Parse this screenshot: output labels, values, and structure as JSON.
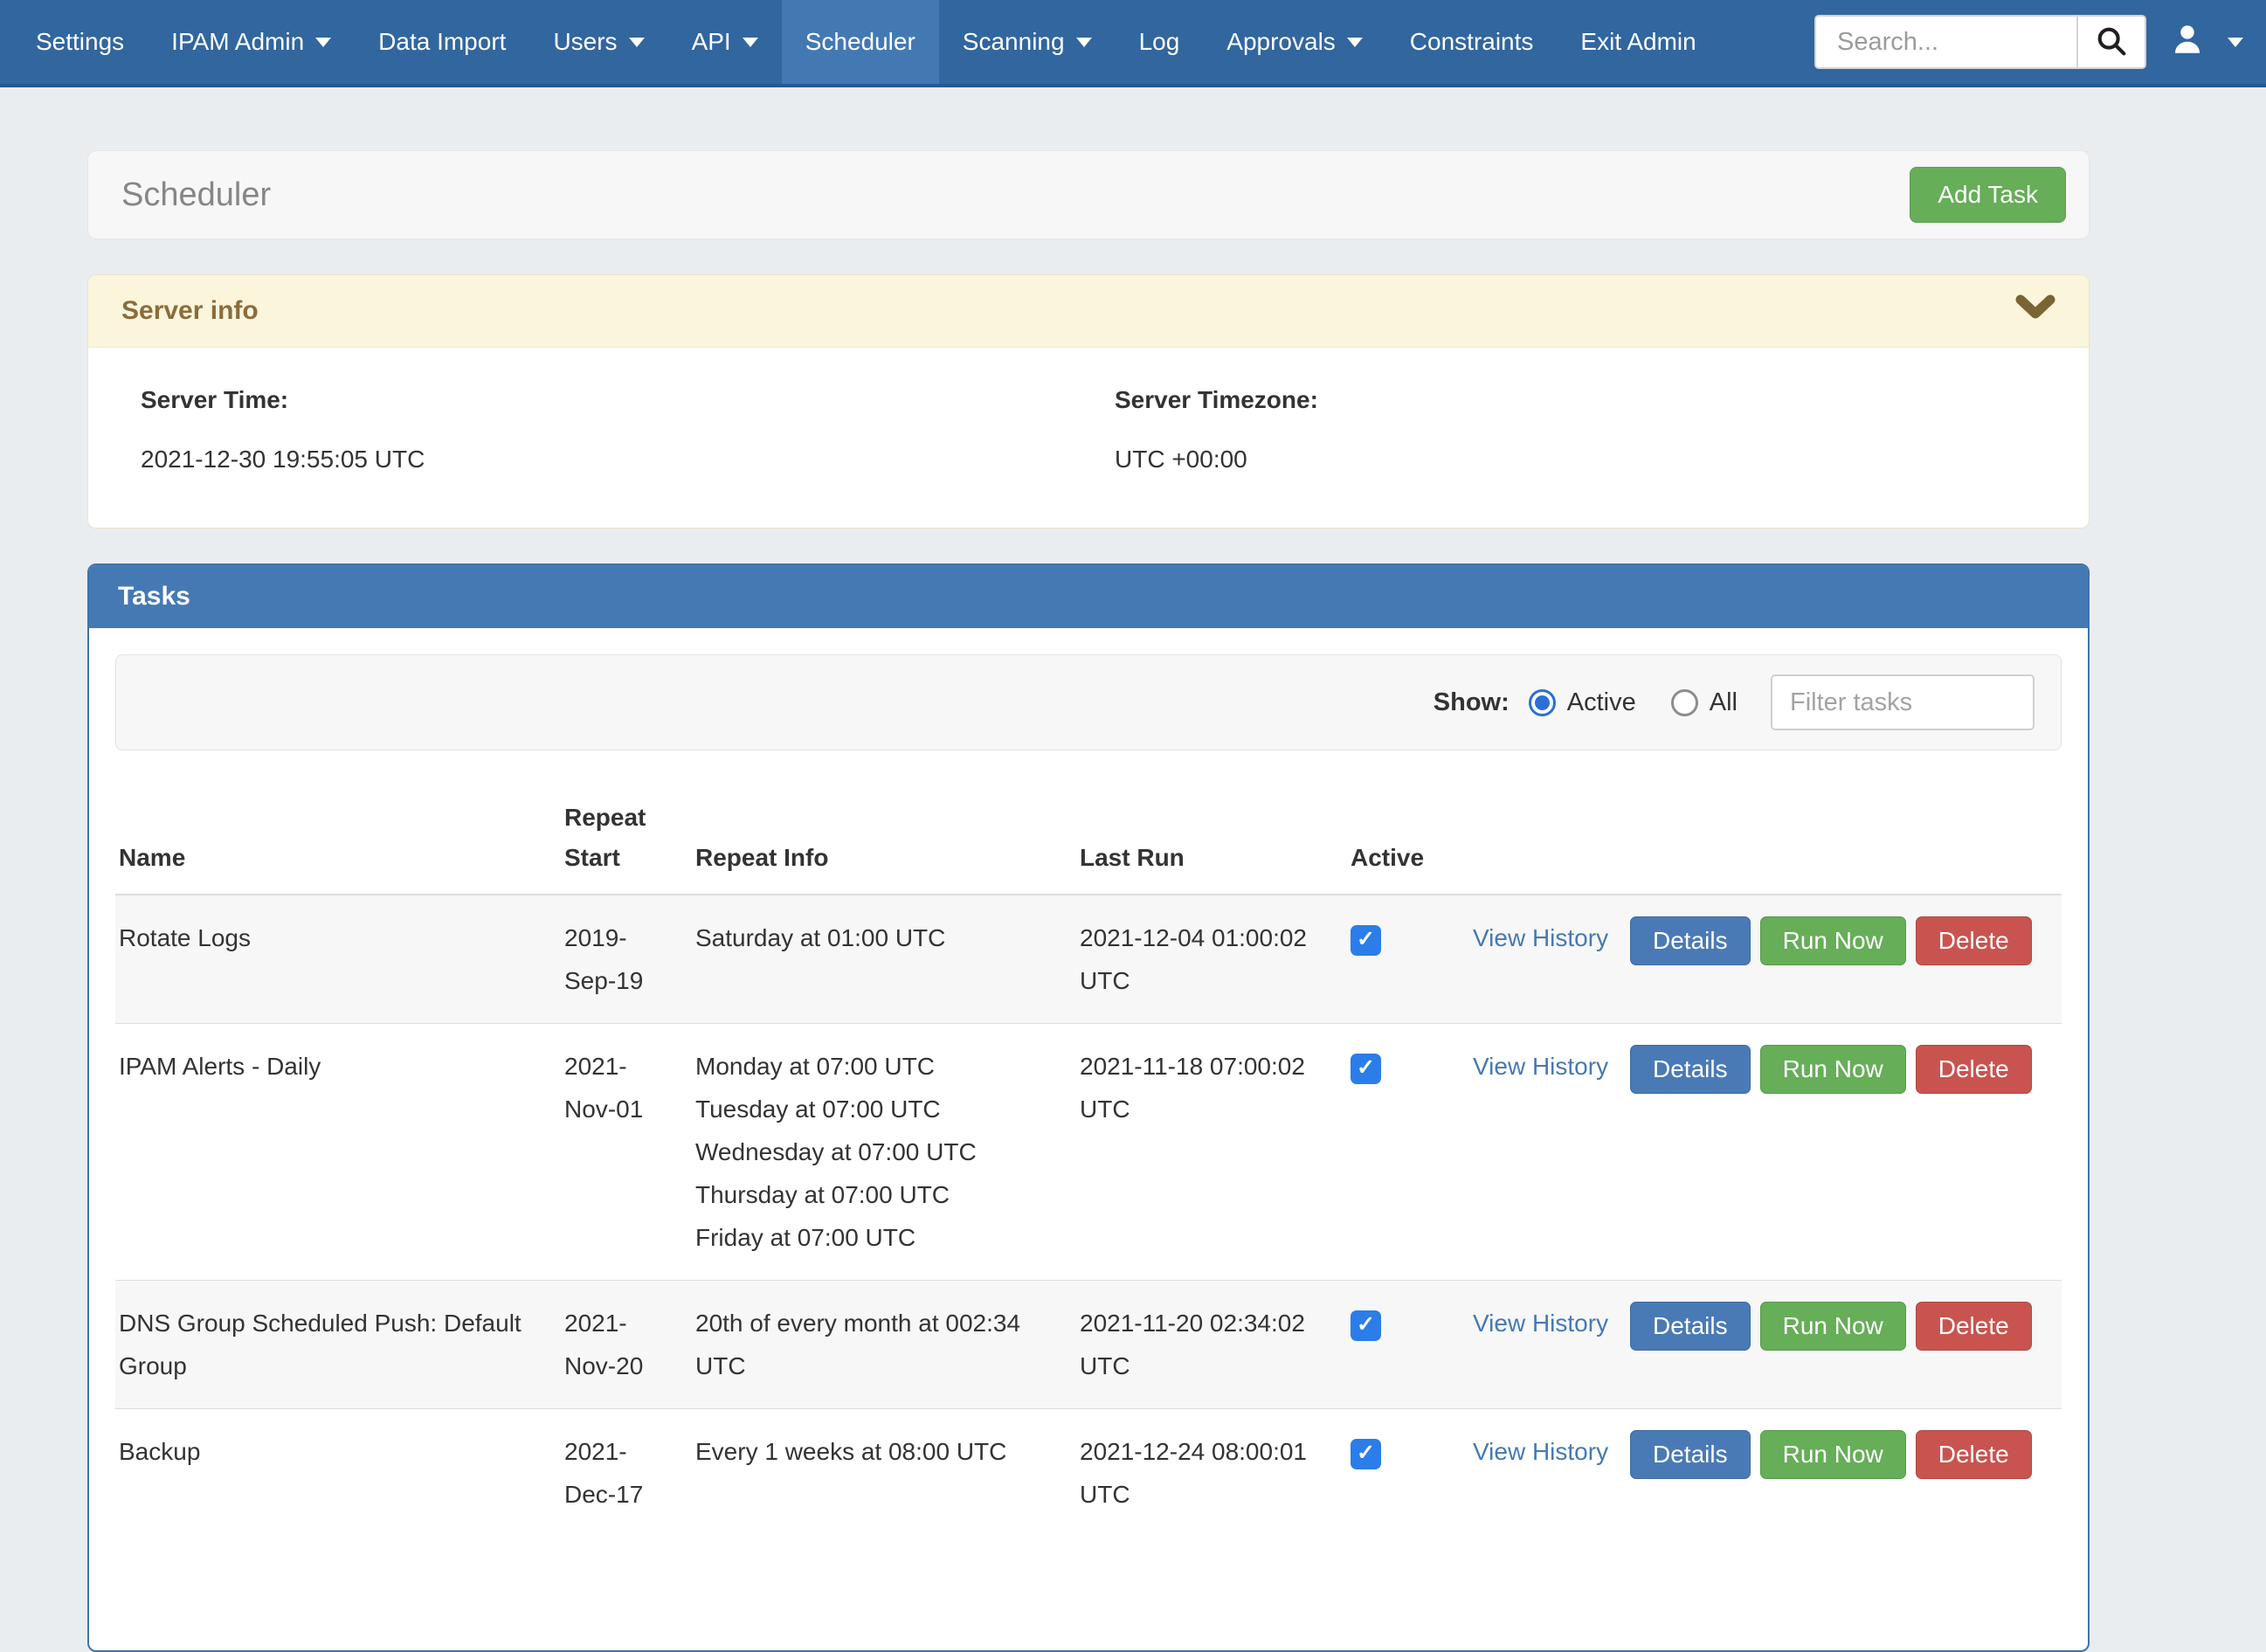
{
  "navbar": {
    "items": [
      {
        "label": "Settings",
        "caret": false,
        "active": false
      },
      {
        "label": "IPAM Admin",
        "caret": true,
        "active": false
      },
      {
        "label": "Data Import",
        "caret": false,
        "active": false
      },
      {
        "label": "Users",
        "caret": true,
        "active": false
      },
      {
        "label": "API",
        "caret": true,
        "active": false
      },
      {
        "label": "Scheduler",
        "caret": false,
        "active": true
      },
      {
        "label": "Scanning",
        "caret": true,
        "active": false
      },
      {
        "label": "Log",
        "caret": false,
        "active": false
      },
      {
        "label": "Approvals",
        "caret": true,
        "active": false
      },
      {
        "label": "Constraints",
        "caret": false,
        "active": false
      },
      {
        "label": "Exit Admin",
        "caret": false,
        "active": false
      }
    ],
    "search": {
      "placeholder": "Search..."
    },
    "icons": {
      "search": "magnifier-icon",
      "user": "user-silhouette-icon",
      "user_caret": "caret-down-icon"
    }
  },
  "page": {
    "title": "Scheduler",
    "add_task_label": "Add Task"
  },
  "server_info": {
    "title": "Server info",
    "collapse_icon": "chevron-down-icon",
    "server_time_label": "Server Time:",
    "server_time_value": "2021-12-30 19:55:05 UTC",
    "server_timezone_label": "Server Timezone:",
    "server_timezone_value": "UTC +00:00"
  },
  "tasks": {
    "title": "Tasks",
    "show_label": "Show:",
    "radio_active_label": "Active",
    "radio_all_label": "All",
    "radio_selected": "Active",
    "filter_placeholder": "Filter tasks",
    "columns": [
      "Name",
      "Repeat Start",
      "Repeat Info",
      "Last Run",
      "Active"
    ],
    "view_history_label": "View History",
    "buttons": {
      "details": "Details",
      "run_now": "Run Now",
      "delete": "Delete"
    },
    "rows": [
      {
        "name": "Rotate Logs",
        "repeat_start": "2019-Sep-19",
        "repeat_info": [
          "Saturday at 01:00 UTC"
        ],
        "last_run": "2021-12-04 01:00:02 UTC",
        "active": true
      },
      {
        "name": "IPAM Alerts - Daily",
        "repeat_start": "2021-Nov-01",
        "repeat_info": [
          "Monday at 07:00 UTC",
          "Tuesday at 07:00 UTC",
          "Wednesday at 07:00 UTC",
          "Thursday at 07:00 UTC",
          "Friday at 07:00 UTC"
        ],
        "last_run": "2021-11-18 07:00:02 UTC",
        "active": true
      },
      {
        "name": "DNS Group Scheduled Push: Default Group",
        "repeat_start": "2021-Nov-20",
        "repeat_info": [
          "20th of every month at 002:34 UTC"
        ],
        "last_run": "2021-11-20 02:34:02 UTC",
        "active": true
      },
      {
        "name": "Backup",
        "repeat_start": "2021-Dec-17",
        "repeat_info": [
          "Every 1 weeks at 08:00 UTC"
        ],
        "last_run": "2021-12-24 08:00:01 UTC",
        "active": true
      }
    ]
  },
  "colors": {
    "navbar_bg": "#31669E",
    "navbar_active_bg": "#4379B3",
    "panel_header_blue": "#4579B4",
    "server_header_bg": "#FBF5DC",
    "server_header_text": "#8a6d3b",
    "button_green": "#66AE58",
    "button_blue": "#4A7AB6",
    "button_red": "#C9544F",
    "checkbox_blue": "#2B7DE9",
    "link_blue": "#4579B4",
    "page_bg": "#e9edf0"
  }
}
